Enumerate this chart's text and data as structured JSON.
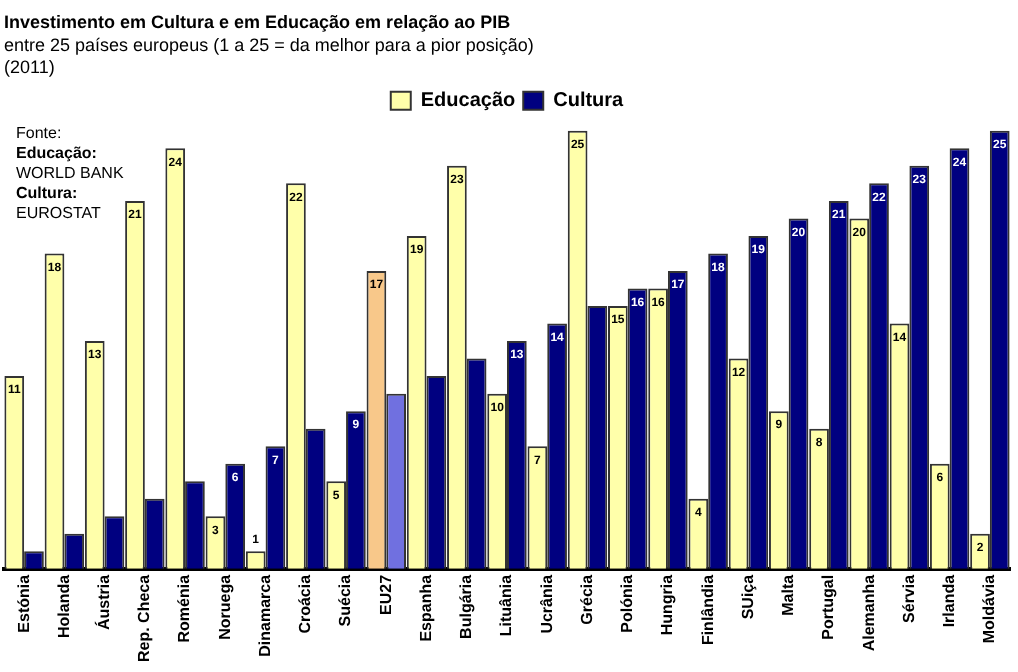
{
  "chart_data": {
    "type": "bar",
    "title": "Investimento em Cultura e em Educação em relação ao PIB",
    "subtitle": "entre 25 países europeus (1 a 25 = da melhor para a pior posição)\n(2011)",
    "annotations": [
      "Fonte:",
      "Educação:",
      "WORLD BANK",
      "Cultura:",
      "EUROSTAT"
    ],
    "categories": [
      "Estónia",
      "Holanda",
      "Áustria",
      "Rep. Checa",
      "Roménia",
      "Noruega",
      "Dinamarca",
      "Croácia",
      "Suécia",
      "EU27",
      "Espanha",
      "Bulgária",
      "Lituânia",
      "Ucrânia",
      "Grécia",
      "Polónia",
      "Hungria",
      "Finlândia",
      "SUiça",
      "Malta",
      "Portugal",
      "Alemanha",
      "Sérvia",
      "Irlanda",
      "Moldávia"
    ],
    "series": [
      {
        "name": "Educação",
        "color": "#ffffaa",
        "colors": [
          "#ffffaa",
          "#ffffaa",
          "#ffffaa",
          "#ffffaa",
          "#ffffaa",
          "#ffffaa",
          "#ffffaa",
          "#ffffaa",
          "#ffffaa",
          "#f8c88a",
          "#ffffaa",
          "#ffffaa",
          "#ffffaa",
          "#ffffaa",
          "#ffffaa",
          "#ffffaa",
          "#ffffaa",
          "#ffffaa",
          "#ffffaa",
          "#ffffaa",
          "#ffffaa",
          "#ffffaa",
          "#ffffaa",
          "#ffffaa",
          "#ffffaa"
        ],
        "values": [
          11,
          18,
          13,
          21,
          24,
          3,
          1,
          22,
          5,
          17,
          19,
          23,
          10,
          7,
          25,
          15,
          16,
          4,
          12,
          9,
          8,
          20,
          14,
          6,
          2
        ],
        "value_labels": [
          "11",
          "18",
          "13",
          "21",
          "24",
          "3",
          "1",
          "22",
          "5",
          "17",
          "19",
          "23",
          "10",
          "7",
          "25",
          "15",
          "16",
          "4",
          "12",
          "9",
          "8",
          "20",
          "14",
          "6",
          "2"
        ]
      },
      {
        "name": "Cultura",
        "color": "#000080",
        "colors": [
          "#000080",
          "#000080",
          "#000080",
          "#000080",
          "#000080",
          "#000080",
          "#000080",
          "#000080",
          "#000080",
          "#7070e0",
          "#000080",
          "#000080",
          "#000080",
          "#000080",
          "#000080",
          "#000080",
          "#000080",
          "#000080",
          "#000080",
          "#000080",
          "#000080",
          "#000080",
          "#000080",
          "#000080",
          "#000080"
        ],
        "values": [
          1,
          2,
          3,
          4,
          5,
          6,
          7,
          8,
          9,
          10,
          11,
          12,
          13,
          14,
          15,
          16,
          17,
          18,
          19,
          20,
          21,
          22,
          23,
          24,
          25
        ],
        "value_labels": [
          null,
          null,
          null,
          null,
          null,
          "6",
          "7",
          null,
          "9",
          null,
          null,
          null,
          "13",
          "14",
          null,
          "16",
          "17",
          "18",
          "19",
          "20",
          "21",
          "22",
          "23",
          "24",
          "25"
        ]
      }
    ],
    "legend": "top",
    "grid": false
  }
}
